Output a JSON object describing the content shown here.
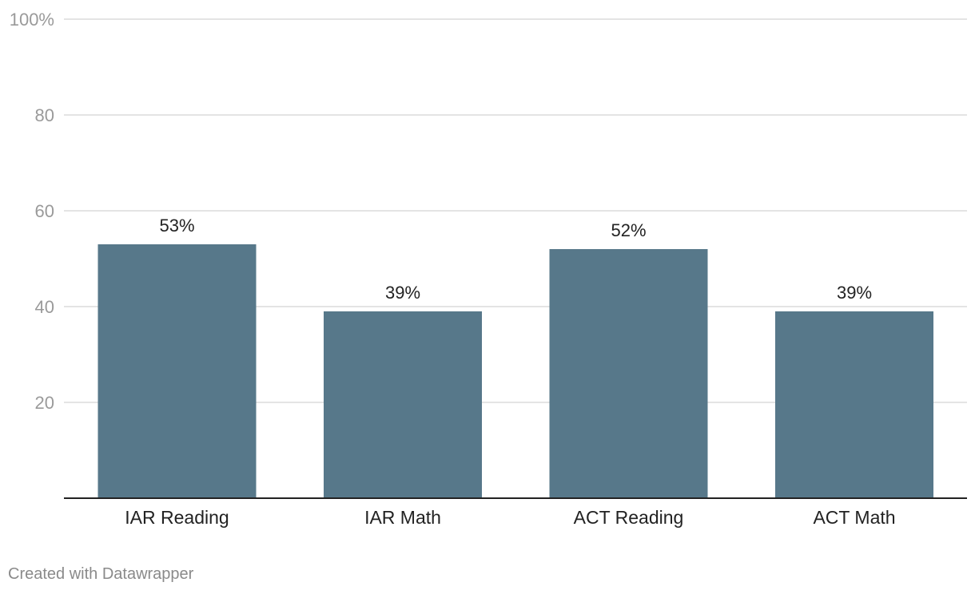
{
  "chart_data": {
    "type": "bar",
    "categories": [
      "IAR Reading",
      "IAR Math",
      "ACT Reading",
      "ACT Math"
    ],
    "values": [
      53,
      39,
      52,
      39
    ],
    "value_labels": [
      "53%",
      "39%",
      "52%",
      "39%"
    ],
    "ylim": [
      0,
      100
    ],
    "yticks": [
      20,
      40,
      60,
      80,
      100
    ],
    "ytick_labels": [
      "20",
      "40",
      "60",
      "80",
      "100%"
    ],
    "grid": true,
    "bar_color": "#57788a",
    "title": "",
    "xlabel": "",
    "ylabel": ""
  },
  "footer": {
    "credit": "Created with Datawrapper"
  }
}
